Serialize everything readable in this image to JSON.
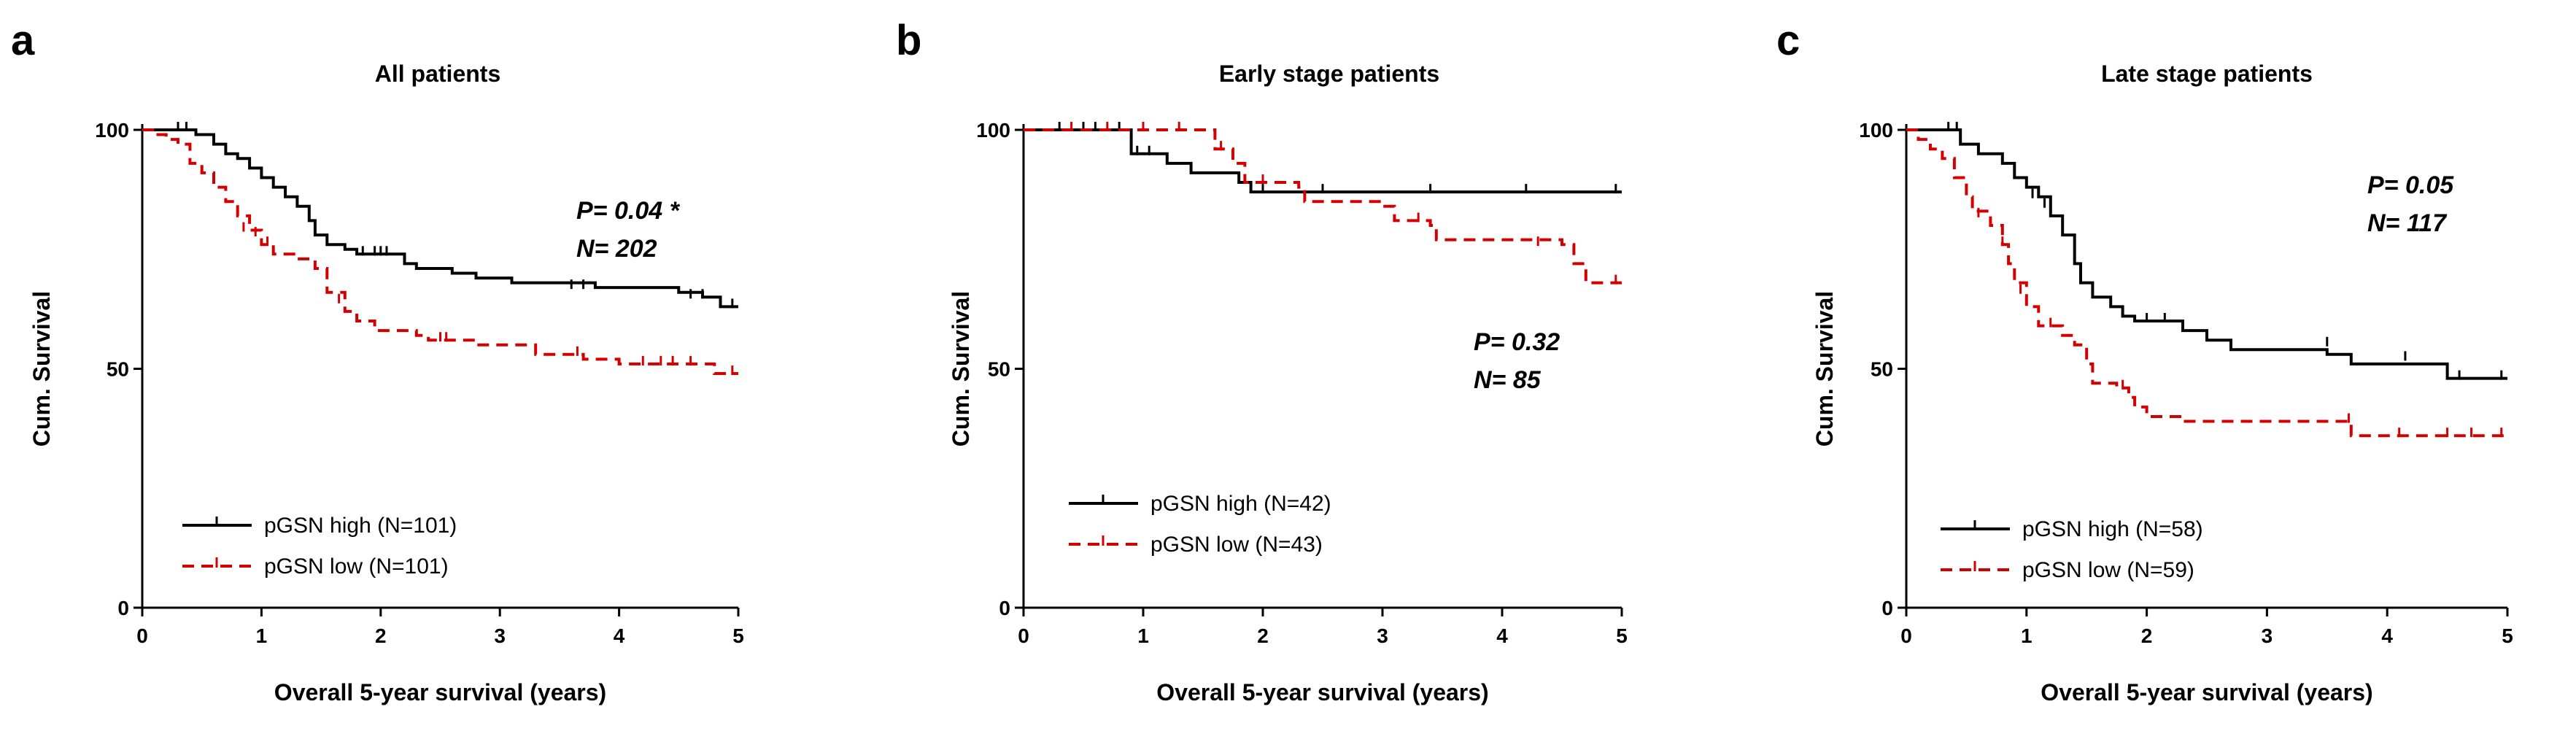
{
  "chart_data": [
    {
      "type": "line",
      "panel_label": "a",
      "title": "All patients",
      "xlabel": "Overall 5-year survival (years)",
      "ylabel": "Cum. Survival",
      "xlim": [
        0,
        5
      ],
      "ylim": [
        0,
        100
      ],
      "xticks": [
        "0",
        "1",
        "2",
        "3",
        "4",
        "5"
      ],
      "yticks": [
        "0",
        "50",
        "100"
      ],
      "annotations": [
        "P= 0.04 *",
        "N= 202"
      ],
      "series": [
        {
          "name": "pGSN high (N=101)",
          "color": "#000000",
          "dashed": false,
          "points": [
            [
              0,
              100
            ],
            [
              0.3,
              100
            ],
            [
              0.45,
              99
            ],
            [
              0.6,
              97
            ],
            [
              0.7,
              95
            ],
            [
              0.8,
              94
            ],
            [
              0.9,
              92
            ],
            [
              1.0,
              90
            ],
            [
              1.1,
              88
            ],
            [
              1.2,
              86
            ],
            [
              1.3,
              84
            ],
            [
              1.4,
              81
            ],
            [
              1.45,
              78
            ],
            [
              1.55,
              76
            ],
            [
              1.7,
              75
            ],
            [
              1.8,
              74
            ],
            [
              2.1,
              74
            ],
            [
              2.2,
              72
            ],
            [
              2.3,
              71
            ],
            [
              2.6,
              70
            ],
            [
              2.8,
              69
            ],
            [
              3.1,
              68
            ],
            [
              3.8,
              67
            ],
            [
              4.5,
              66
            ],
            [
              4.7,
              65
            ],
            [
              4.85,
              63
            ],
            [
              5,
              63
            ]
          ],
          "censored": [
            [
              0.3,
              100
            ],
            [
              0.37,
              100
            ],
            [
              1.85,
              74
            ],
            [
              1.95,
              74
            ],
            [
              2.0,
              74
            ],
            [
              2.05,
              74
            ],
            [
              3.6,
              67
            ],
            [
              3.7,
              67
            ],
            [
              4.6,
              65
            ],
            [
              4.7,
              65
            ],
            [
              4.95,
              63
            ]
          ]
        },
        {
          "name": "pGSN low (N=101)",
          "color": "#d40000",
          "dashed": true,
          "points": [
            [
              0,
              100
            ],
            [
              0.1,
              99
            ],
            [
              0.2,
              98
            ],
            [
              0.3,
              97
            ],
            [
              0.4,
              93
            ],
            [
              0.5,
              91
            ],
            [
              0.6,
              88
            ],
            [
              0.7,
              85
            ],
            [
              0.8,
              82
            ],
            [
              0.9,
              79
            ],
            [
              1.0,
              76
            ],
            [
              1.1,
              74
            ],
            [
              1.3,
              73
            ],
            [
              1.45,
              71
            ],
            [
              1.55,
              66
            ],
            [
              1.7,
              62
            ],
            [
              1.8,
              60
            ],
            [
              1.95,
              58
            ],
            [
              2.3,
              57
            ],
            [
              2.4,
              56
            ],
            [
              2.8,
              55
            ],
            [
              3.3,
              53
            ],
            [
              3.7,
              52
            ],
            [
              4.0,
              51
            ],
            [
              4.8,
              49
            ],
            [
              5,
              49
            ]
          ],
          "censored": [
            [
              0.85,
              79
            ],
            [
              0.95,
              78
            ],
            [
              1.05,
              76
            ],
            [
              1.65,
              64
            ],
            [
              2.5,
              56
            ],
            [
              2.55,
              56
            ],
            [
              3.65,
              53
            ],
            [
              4.2,
              51
            ],
            [
              4.35,
              51
            ],
            [
              4.45,
              51
            ],
            [
              4.6,
              51
            ],
            [
              4.95,
              49
            ]
          ]
        }
      ]
    },
    {
      "type": "line",
      "panel_label": "b",
      "title": "Early stage patients",
      "xlabel": "Overall 5-year survival (years)",
      "ylabel": "Cum. Survival",
      "xlim": [
        0,
        5
      ],
      "ylim": [
        0,
        100
      ],
      "xticks": [
        "0",
        "1",
        "2",
        "3",
        "4",
        "5"
      ],
      "yticks": [
        "0",
        "50",
        "100"
      ],
      "annotations": [
        "P= 0.32",
        "N= 85"
      ],
      "series": [
        {
          "name": "pGSN high (N=42)",
          "color": "#000000",
          "dashed": false,
          "points": [
            [
              0,
              100
            ],
            [
              0.85,
              100
            ],
            [
              0.9,
              95
            ],
            [
              1.2,
              93
            ],
            [
              1.4,
              91
            ],
            [
              1.8,
              89
            ],
            [
              1.9,
              87
            ],
            [
              5,
              87
            ]
          ],
          "censored": [
            [
              0.3,
              100
            ],
            [
              0.5,
              100
            ],
            [
              0.6,
              100
            ],
            [
              0.8,
              100
            ],
            [
              0.95,
              95
            ],
            [
              1.05,
              95
            ],
            [
              2.0,
              87
            ],
            [
              2.5,
              87
            ],
            [
              3.4,
              87
            ],
            [
              4.2,
              87
            ],
            [
              4.95,
              87
            ]
          ]
        },
        {
          "name": "pGSN low (N=43)",
          "color": "#d40000",
          "dashed": true,
          "points": [
            [
              0,
              100
            ],
            [
              1.5,
              100
            ],
            [
              1.6,
              96
            ],
            [
              1.75,
              93
            ],
            [
              1.85,
              89
            ],
            [
              2.3,
              88
            ],
            [
              2.35,
              85
            ],
            [
              3.0,
              84
            ],
            [
              3.1,
              81
            ],
            [
              3.4,
              80
            ],
            [
              3.45,
              77
            ],
            [
              4.5,
              76
            ],
            [
              4.6,
              72
            ],
            [
              4.7,
              68
            ],
            [
              5,
              68
            ]
          ],
          "censored": [
            [
              0.4,
              100
            ],
            [
              0.7,
              100
            ],
            [
              1.0,
              100
            ],
            [
              1.3,
              100
            ],
            [
              1.65,
              96
            ],
            [
              2.0,
              89
            ],
            [
              3.3,
              81
            ],
            [
              4.3,
              76
            ],
            [
              4.95,
              68
            ]
          ]
        }
      ]
    },
    {
      "type": "line",
      "panel_label": "c",
      "title": "Late stage patients",
      "xlabel": "Overall 5-year survival (years)",
      "ylabel": "Cum. Survival",
      "xlim": [
        0,
        5
      ],
      "ylim": [
        0,
        100
      ],
      "xticks": [
        "0",
        "1",
        "2",
        "3",
        "4",
        "5"
      ],
      "yticks": [
        "0",
        "50",
        "100"
      ],
      "annotations": [
        "P= 0.05",
        "N= 117"
      ],
      "series": [
        {
          "name": "pGSN high (N=58)",
          "color": "#000000",
          "dashed": false,
          "points": [
            [
              0,
              100
            ],
            [
              0.4,
              100
            ],
            [
              0.45,
              97
            ],
            [
              0.6,
              95
            ],
            [
              0.8,
              93
            ],
            [
              0.9,
              90
            ],
            [
              1.0,
              88
            ],
            [
              1.1,
              86
            ],
            [
              1.2,
              82
            ],
            [
              1.3,
              78
            ],
            [
              1.4,
              72
            ],
            [
              1.45,
              68
            ],
            [
              1.55,
              65
            ],
            [
              1.7,
              63
            ],
            [
              1.8,
              61
            ],
            [
              1.9,
              60
            ],
            [
              2.3,
              58
            ],
            [
              2.5,
              56
            ],
            [
              2.7,
              54
            ],
            [
              3.5,
              53
            ],
            [
              3.7,
              51
            ],
            [
              4.5,
              51
            ],
            [
              4.5,
              48
            ],
            [
              5,
              48
            ]
          ],
          "censored": [
            [
              0.35,
              100
            ],
            [
              0.42,
              100
            ],
            [
              1.05,
              86
            ],
            [
              1.15,
              84
            ],
            [
              2.0,
              60
            ],
            [
              2.15,
              60
            ],
            [
              3.5,
              55
            ],
            [
              4.15,
              52
            ],
            [
              4.6,
              48
            ],
            [
              4.95,
              48
            ]
          ]
        },
        {
          "name": "pGSN low (N=59)",
          "color": "#d40000",
          "dashed": true,
          "points": [
            [
              0,
              100
            ],
            [
              0.1,
              98
            ],
            [
              0.2,
              96
            ],
            [
              0.3,
              94
            ],
            [
              0.4,
              90
            ],
            [
              0.5,
              86
            ],
            [
              0.55,
              83
            ],
            [
              0.7,
              80
            ],
            [
              0.8,
              76
            ],
            [
              0.85,
              72
            ],
            [
              0.9,
              68
            ],
            [
              1.0,
              63
            ],
            [
              1.1,
              59
            ],
            [
              1.3,
              57
            ],
            [
              1.4,
              55
            ],
            [
              1.5,
              51
            ],
            [
              1.55,
              47
            ],
            [
              1.75,
              46
            ],
            [
              1.85,
              44
            ],
            [
              1.9,
              42
            ],
            [
              2.0,
              40
            ],
            [
              2.3,
              39
            ],
            [
              3.7,
              39
            ],
            [
              3.7,
              36
            ],
            [
              5,
              36
            ]
          ],
          "censored": [
            [
              0.6,
              82
            ],
            [
              0.8,
              76
            ],
            [
              0.95,
              66
            ],
            [
              1.2,
              59
            ],
            [
              1.8,
              46
            ],
            [
              3.68,
              39
            ],
            [
              4.1,
              36
            ],
            [
              4.5,
              36
            ],
            [
              4.7,
              36
            ],
            [
              4.95,
              36
            ]
          ]
        }
      ]
    }
  ]
}
